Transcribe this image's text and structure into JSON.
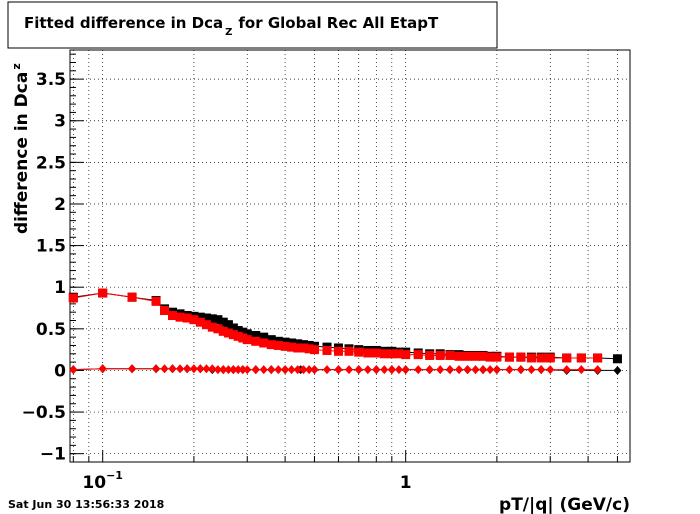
{
  "chart_data": {
    "type": "scatter",
    "title": "Fitted difference in Dca",
    "title_subscript": "Z",
    "title_suffix": "for Global Rec All EtapT",
    "xlabel": "pT/|q| (GeV/c)",
    "ylabel": "difference in Dca",
    "ylabel_subscript": "z",
    "x_scale": "log",
    "xlim": [
      0.078,
      5.5
    ],
    "ylim": [
      -1.1,
      3.85
    ],
    "grid": true,
    "x_ticklabels": [
      {
        "value": 0.1,
        "label": "10",
        "sup": "−1"
      },
      {
        "value": 1,
        "label": "1",
        "sup": ""
      }
    ],
    "y_ticks": [
      -1,
      -0.5,
      0,
      0.5,
      1,
      1.5,
      2,
      2.5,
      3,
      3.5
    ],
    "y_ticklabels": [
      "−1",
      "−0.5",
      "0",
      "0.5",
      "1",
      "1.5",
      "2",
      "2.5",
      "3",
      "3.5"
    ],
    "footer": "Sat Jun 30 13:56:33 2018",
    "series": [
      {
        "color": "#000000",
        "marker": "square",
        "x": [
          0.08,
          0.1,
          0.125,
          0.15,
          0.16,
          0.17,
          0.18,
          0.19,
          0.2,
          0.21,
          0.22,
          0.23,
          0.24,
          0.25,
          0.26,
          0.27,
          0.28,
          0.29,
          0.3,
          0.32,
          0.34,
          0.36,
          0.38,
          0.4,
          0.42,
          0.44,
          0.46,
          0.48,
          0.5,
          0.55,
          0.6,
          0.65,
          0.7,
          0.75,
          0.8,
          0.85,
          0.9,
          0.95,
          1.0,
          1.1,
          1.2,
          1.3,
          1.4,
          1.5,
          1.6,
          1.7,
          1.8,
          1.9,
          2.0,
          2.2,
          2.4,
          2.6,
          2.8,
          3.0,
          3.4,
          3.8,
          4.3,
          5.0
        ],
        "y": [
          0.88,
          0.93,
          0.88,
          0.84,
          0.74,
          0.7,
          0.68,
          0.66,
          0.65,
          0.64,
          0.63,
          0.62,
          0.61,
          0.58,
          0.55,
          0.51,
          0.48,
          0.46,
          0.44,
          0.42,
          0.4,
          0.37,
          0.35,
          0.34,
          0.33,
          0.32,
          0.31,
          0.3,
          0.29,
          0.28,
          0.27,
          0.26,
          0.25,
          0.24,
          0.24,
          0.23,
          0.23,
          0.22,
          0.22,
          0.21,
          0.2,
          0.2,
          0.19,
          0.19,
          0.18,
          0.18,
          0.18,
          0.17,
          0.17,
          0.16,
          0.16,
          0.16,
          0.16,
          0.16,
          0.15,
          0.15,
          0.15,
          0.14
        ]
      },
      {
        "color": "#ff0000",
        "marker": "square",
        "x": [
          0.08,
          0.1,
          0.125,
          0.15,
          0.16,
          0.17,
          0.18,
          0.19,
          0.2,
          0.21,
          0.22,
          0.23,
          0.24,
          0.25,
          0.26,
          0.27,
          0.28,
          0.29,
          0.3,
          0.32,
          0.34,
          0.36,
          0.38,
          0.4,
          0.42,
          0.44,
          0.46,
          0.48,
          0.5,
          0.55,
          0.6,
          0.65,
          0.7,
          0.75,
          0.8,
          0.85,
          0.9,
          0.95,
          1.0,
          1.1,
          1.2,
          1.3,
          1.4,
          1.5,
          1.6,
          1.7,
          1.8,
          1.9,
          2.0,
          2.2,
          2.4,
          2.6,
          2.8,
          3.0,
          3.4,
          3.8,
          4.3
        ],
        "y": [
          0.87,
          0.93,
          0.88,
          0.83,
          0.72,
          0.66,
          0.64,
          0.63,
          0.61,
          0.58,
          0.55,
          0.52,
          0.5,
          0.47,
          0.45,
          0.43,
          0.41,
          0.39,
          0.37,
          0.35,
          0.33,
          0.31,
          0.3,
          0.29,
          0.28,
          0.27,
          0.27,
          0.26,
          0.25,
          0.24,
          0.23,
          0.23,
          0.22,
          0.21,
          0.21,
          0.2,
          0.2,
          0.2,
          0.19,
          0.19,
          0.18,
          0.18,
          0.18,
          0.17,
          0.17,
          0.17,
          0.17,
          0.16,
          0.16,
          0.16,
          0.16,
          0.15,
          0.15,
          0.15,
          0.15,
          0.15,
          0.15
        ]
      },
      {
        "color": "#000000",
        "marker": "diamond",
        "x": [
          0.08,
          0.1,
          0.125,
          0.15,
          0.17,
          0.19,
          0.21,
          0.23,
          0.25,
          0.27,
          0.29,
          0.32,
          0.36,
          0.4,
          0.45,
          0.5,
          0.6,
          0.7,
          0.8,
          0.9,
          1.0,
          1.2,
          1.4,
          1.6,
          1.8,
          2.0,
          2.4,
          2.8,
          3.4,
          4.3,
          5.0
        ],
        "y": [
          0.01,
          0.02,
          0.02,
          0.02,
          0.02,
          0.02,
          0.02,
          0.01,
          0.01,
          0.01,
          0.01,
          0.01,
          0.01,
          0.01,
          0.01,
          0.01,
          0.01,
          0.01,
          0.01,
          0.01,
          0.01,
          0.01,
          0.01,
          0.01,
          0.01,
          0.01,
          0.01,
          0.01,
          0.0,
          0.0,
          0.0
        ]
      },
      {
        "color": "#ff0000",
        "marker": "diamond",
        "x": [
          0.08,
          0.1,
          0.125,
          0.15,
          0.16,
          0.17,
          0.18,
          0.19,
          0.2,
          0.21,
          0.22,
          0.23,
          0.24,
          0.25,
          0.26,
          0.27,
          0.28,
          0.29,
          0.3,
          0.32,
          0.34,
          0.36,
          0.38,
          0.4,
          0.42,
          0.44,
          0.46,
          0.48,
          0.5,
          0.55,
          0.6,
          0.65,
          0.7,
          0.75,
          0.8,
          0.85,
          0.9,
          0.95,
          1.0,
          1.1,
          1.2,
          1.3,
          1.4,
          1.5,
          1.6,
          1.7,
          1.8,
          1.9,
          2.0,
          2.2,
          2.4,
          2.6,
          2.8,
          3.0,
          3.4,
          3.8,
          4.3
        ],
        "y": [
          0.01,
          0.02,
          0.02,
          0.02,
          0.02,
          0.02,
          0.02,
          0.02,
          0.02,
          0.02,
          0.02,
          0.02,
          0.01,
          0.01,
          0.01,
          0.01,
          0.01,
          0.01,
          0.01,
          0.01,
          0.01,
          0.01,
          0.01,
          0.01,
          0.01,
          0.01,
          0.01,
          0.01,
          0.01,
          0.01,
          0.01,
          0.01,
          0.01,
          0.01,
          0.01,
          0.01,
          0.01,
          0.01,
          0.01,
          0.01,
          0.01,
          0.01,
          0.01,
          0.01,
          0.01,
          0.01,
          0.01,
          0.01,
          0.01,
          0.01,
          0.01,
          0.01,
          0.01,
          0.01,
          0.01,
          0.01,
          0.01
        ]
      }
    ]
  }
}
